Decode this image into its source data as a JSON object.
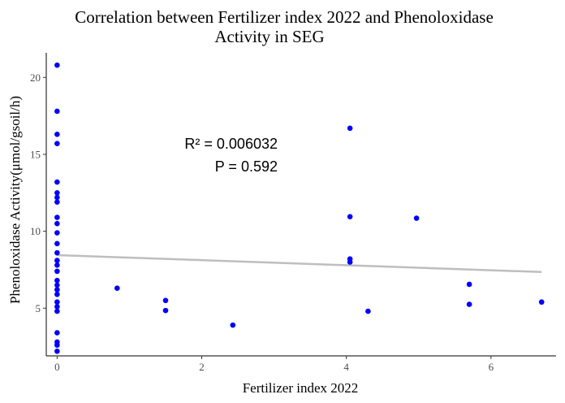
{
  "chart_data": {
    "type": "scatter",
    "title_line1": "Correlation between Fertilizer index 2022 and Phenoloxidase",
    "title_line2": "Activity in SEG",
    "xlabel": "Fertilizer index 2022",
    "ylabel": "Phenoloxidase Activity(μmol/gsoil/h)",
    "xlim": [
      -0.15,
      6.9
    ],
    "ylim": [
      1.9,
      21.6
    ],
    "x_ticks": [
      0,
      2,
      4,
      6
    ],
    "y_ticks": [
      5,
      10,
      15,
      20
    ],
    "grid": false,
    "point_color": "#0000ff",
    "line_color": "#bebebe",
    "points": [
      [
        0,
        20.8
      ],
      [
        0,
        17.8
      ],
      [
        0,
        16.3
      ],
      [
        0,
        15.7
      ],
      [
        0,
        13.2
      ],
      [
        0,
        12.5
      ],
      [
        0,
        12.2
      ],
      [
        0,
        11.9
      ],
      [
        0,
        10.9
      ],
      [
        0,
        10.5
      ],
      [
        0,
        9.9
      ],
      [
        0,
        9.2
      ],
      [
        0,
        8.6
      ],
      [
        0,
        8.1
      ],
      [
        0,
        7.8
      ],
      [
        0,
        7.4
      ],
      [
        0,
        6.8
      ],
      [
        0,
        6.5
      ],
      [
        0,
        6.2
      ],
      [
        0,
        5.9
      ],
      [
        0,
        5.4
      ],
      [
        0,
        5.1
      ],
      [
        0,
        4.8
      ],
      [
        0,
        3.4
      ],
      [
        0,
        2.8
      ],
      [
        0,
        2.6
      ],
      [
        0,
        2.2
      ],
      [
        0.83,
        6.3
      ],
      [
        1.5,
        5.5
      ],
      [
        1.5,
        4.85
      ],
      [
        2.43,
        3.9
      ],
      [
        4.05,
        16.7
      ],
      [
        4.05,
        10.95
      ],
      [
        4.05,
        8.2
      ],
      [
        4.05,
        8.0
      ],
      [
        4.3,
        4.8
      ],
      [
        4.97,
        10.85
      ],
      [
        5.7,
        6.55
      ],
      [
        5.7,
        5.25
      ],
      [
        6.7,
        5.4
      ]
    ],
    "regression": {
      "x": [
        0,
        6.7
      ],
      "y": [
        8.45,
        7.35
      ]
    },
    "annotations": {
      "r2": "R² = 0.006032",
      "p": "P = 0.592"
    }
  }
}
